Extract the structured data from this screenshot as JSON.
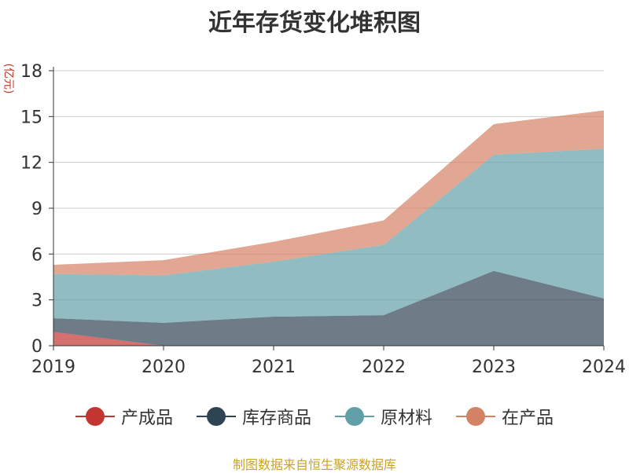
{
  "title": "近年存货变化堆积图",
  "unit": "(亿元)",
  "source": "制图数据来自恒生聚源数据库",
  "chart_data": {
    "type": "area",
    "stacked": true,
    "x": [
      "2019",
      "2020",
      "2021",
      "2022",
      "2023",
      "2024"
    ],
    "yticks": [
      0,
      3,
      6,
      9,
      12,
      15,
      18
    ],
    "ylim": [
      0,
      18
    ],
    "grid": true,
    "legend_position": "bottom",
    "series": [
      {
        "name": "产成品",
        "color": "#c23531",
        "values": [
          0.9,
          0.0,
          0.0,
          0.0,
          0.0,
          0.0
        ]
      },
      {
        "name": "库存商品",
        "color": "#2f4554",
        "values": [
          0.9,
          1.5,
          1.9,
          2.0,
          4.9,
          3.1
        ]
      },
      {
        "name": "原材料",
        "color": "#61a0a8",
        "values": [
          2.9,
          3.1,
          3.6,
          4.6,
          7.6,
          9.8
        ]
      },
      {
        "name": "在产品",
        "color": "#d48265",
        "values": [
          0.6,
          1.0,
          1.3,
          1.6,
          2.0,
          2.5
        ]
      }
    ]
  }
}
